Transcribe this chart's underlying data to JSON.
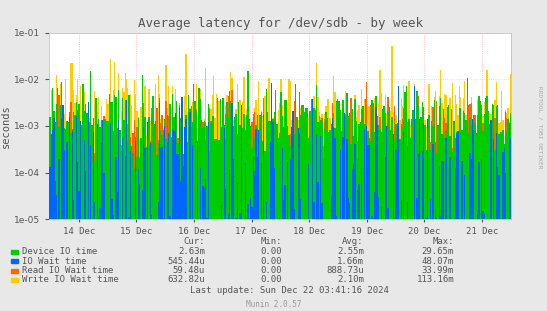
{
  "title": "Average latency for /dev/sdb - by week",
  "ylabel": "seconds",
  "background_color": "#e8e8e8",
  "plot_bg_color": "#ffffff",
  "grid_color": "#cccccc",
  "x_labels": [
    "14 Dec",
    "15 Dec",
    "16 Dec",
    "17 Dec",
    "18 Dec",
    "19 Dec",
    "20 Dec",
    "21 Dec"
  ],
  "y_min": 1e-05,
  "y_max": 0.1,
  "legend_entries": [
    {
      "label": "Device IO time",
      "color": "#00cc00"
    },
    {
      "label": "IO Wait time",
      "color": "#0066ff"
    },
    {
      "label": "Read IO Wait time",
      "color": "#ff6600"
    },
    {
      "label": "Write IO Wait time",
      "color": "#ffcc00"
    }
  ],
  "legend_stats": [
    {
      "cur": "2.63m",
      "min": "0.00",
      "avg": "2.55m",
      "max": "29.65m"
    },
    {
      "cur": "545.44u",
      "min": "0.00",
      "avg": "1.66m",
      "max": "48.07m"
    },
    {
      "cur": "59.48u",
      "min": "0.00",
      "avg": "888.73u",
      "max": "33.99m"
    },
    {
      "cur": "632.82u",
      "min": "0.00",
      "avg": "2.10m",
      "max": "113.16m"
    }
  ],
  "last_update": "Last update: Sun Dec 22 03:41:16 2024",
  "munin_version": "Munin 2.0.57",
  "rrdtool_label": "RRDTOOL / TOBI OETIKER",
  "title_color": "#555555",
  "text_color": "#555555",
  "n_bars": 350,
  "seed": 123
}
